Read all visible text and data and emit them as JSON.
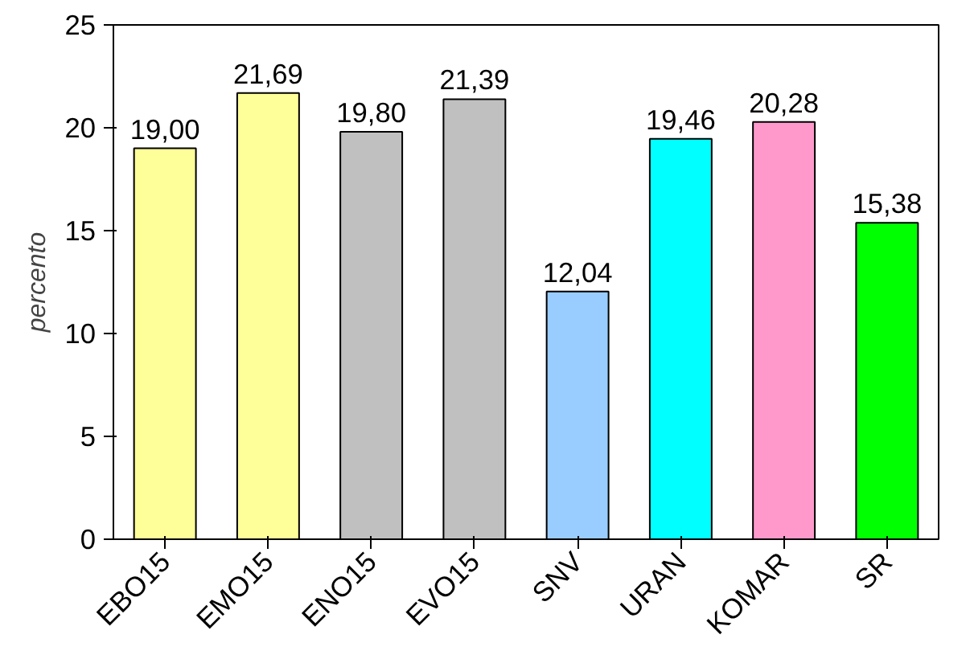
{
  "chart_data": {
    "type": "bar",
    "ylabel": "percento",
    "categories": [
      "EBO15",
      "EMO15",
      "ENO15",
      "EVO15",
      "SNV",
      "URAN",
      "KOMAR",
      "SR"
    ],
    "values": [
      19.0,
      21.69,
      19.8,
      21.39,
      12.04,
      19.46,
      20.28,
      15.38
    ],
    "value_labels": [
      "19,00",
      "21,69",
      "19,80",
      "21,39",
      "12,04",
      "19,46",
      "20,28",
      "15,38"
    ],
    "colors": [
      "#ffff99",
      "#ffff99",
      "#c0c0c0",
      "#c0c0c0",
      "#99ccff",
      "#00ffff",
      "#ff99cc",
      "#00ff00"
    ],
    "ylim": [
      0,
      25
    ],
    "yticks": [
      0,
      5,
      10,
      15,
      20,
      25
    ],
    "grid": false
  }
}
